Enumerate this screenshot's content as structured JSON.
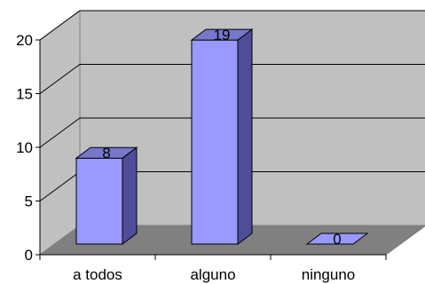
{
  "chart_data": {
    "type": "bar",
    "categories": [
      "a todos",
      "alguno",
      "ninguno"
    ],
    "values": [
      8,
      19,
      0
    ],
    "data_labels": [
      "8",
      "19",
      "0"
    ],
    "title": "",
    "xlabel": "",
    "ylabel": "",
    "ylim": [
      0,
      20
    ],
    "yticks": [
      "0",
      "5",
      "10",
      "15",
      "20"
    ],
    "ytick_values": [
      0,
      5,
      10,
      15,
      20
    ],
    "grid": true,
    "three_d": true,
    "colors": {
      "bar_front": "#9999ff",
      "bar_side": "#4d4d99",
      "bar_top": "#7777cc",
      "wall": "#c0c0c0",
      "floor": "#808080",
      "grid": "#000000",
      "outline": "#000000"
    }
  }
}
